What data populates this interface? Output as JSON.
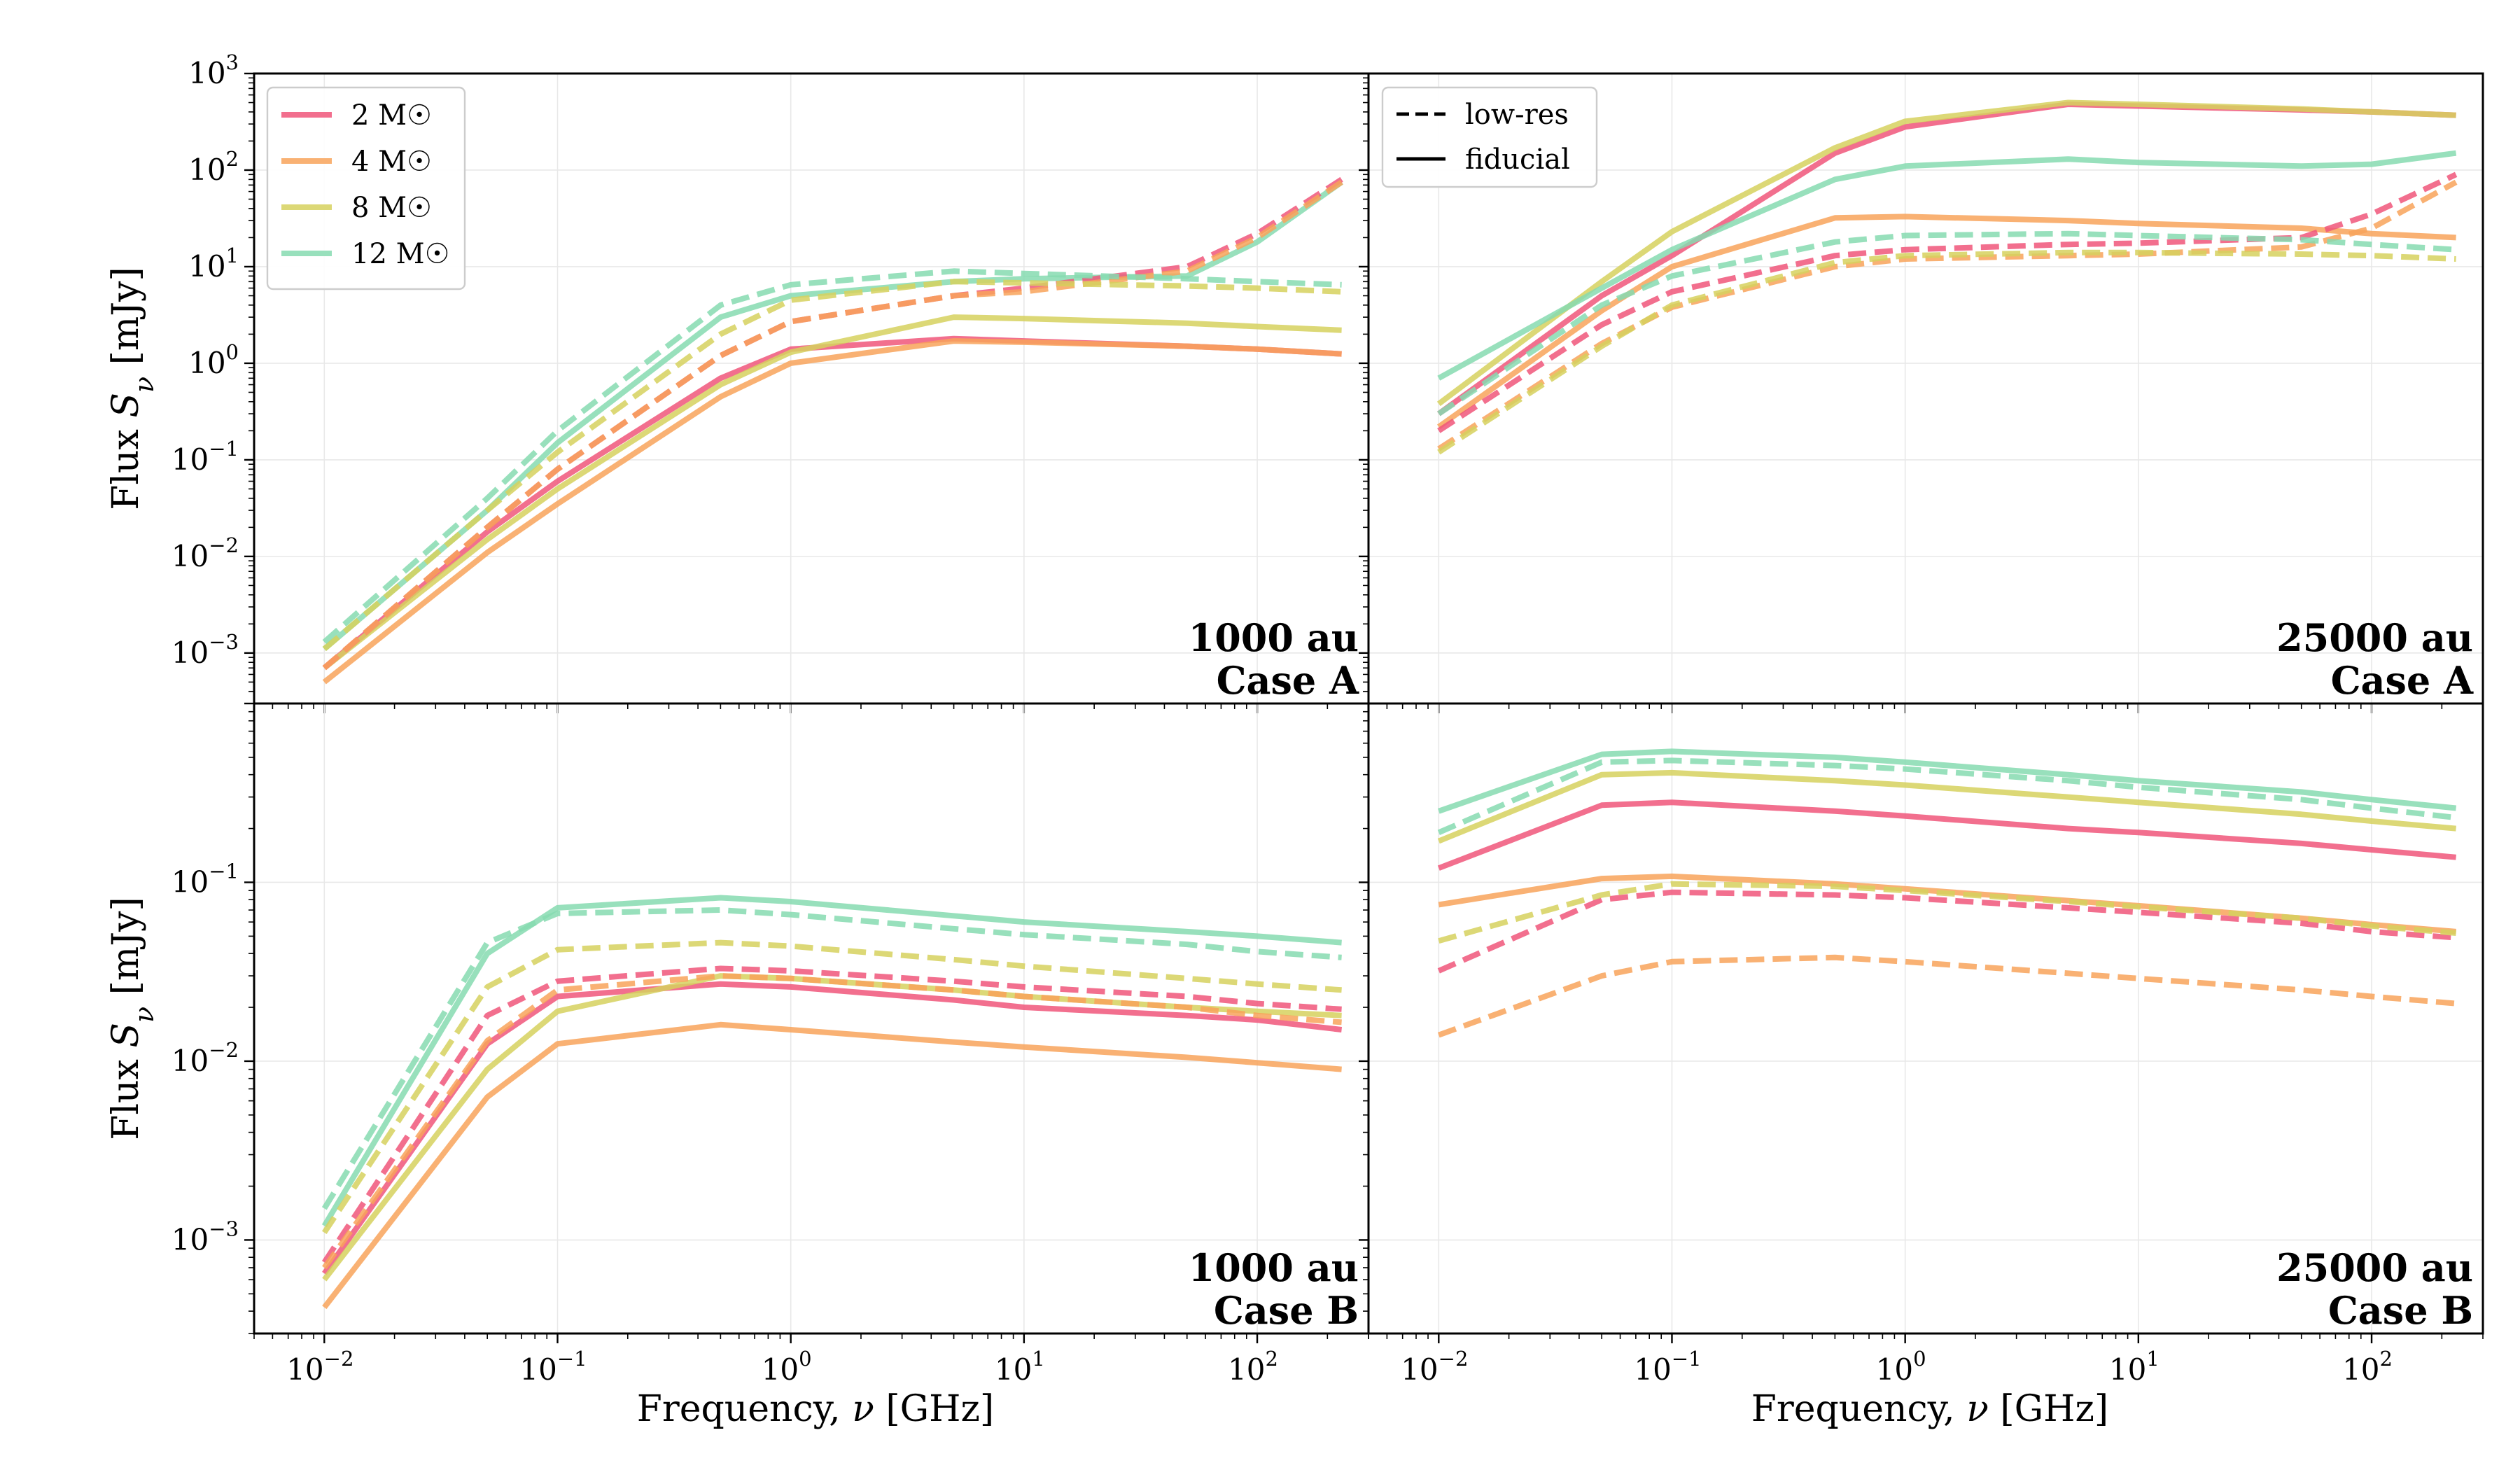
{
  "figure": {
    "xlabel": "Frequency, ν [GHz]",
    "ylabel": "Flux S_ν [mJy]"
  },
  "legend_mass": {
    "entries": [
      {
        "label": "2 M☉",
        "color": "#f0567a"
      },
      {
        "label": "4 M☉",
        "color": "#f8a35a"
      },
      {
        "label": "8 M☉",
        "color": "#d6d15e"
      },
      {
        "label": "12 M☉",
        "color": "#86dbb0"
      }
    ]
  },
  "legend_style": {
    "entries": [
      {
        "label": "low-res",
        "style": "dashed"
      },
      {
        "label": "fiducial",
        "style": "solid"
      }
    ]
  },
  "chart_data": [
    {
      "type": "line",
      "label_line1": "1000 au",
      "label_line2": "Case A",
      "xscale": "log",
      "yscale": "log",
      "xlim": [
        0.005,
        300
      ],
      "ylim": [
        0.0003,
        1000
      ],
      "yticks": [
        -3,
        -2,
        -1,
        0,
        1,
        2,
        3
      ],
      "xticks": [
        -2,
        -1,
        0,
        1,
        2
      ],
      "grid": true,
      "legend": "top-left",
      "x": [
        0.01,
        0.05,
        0.1,
        0.5,
        1,
        5,
        10,
        50,
        100,
        230
      ],
      "series": [
        {
          "mass": "2 M☉",
          "style": "solid",
          "color": "#f0567a",
          "values": [
            0.0007,
            0.018,
            0.06,
            0.7,
            1.4,
            1.8,
            1.7,
            1.5,
            1.4,
            1.25
          ]
        },
        {
          "mass": "4 M☉",
          "style": "solid",
          "color": "#f8a35a",
          "values": [
            0.0005,
            0.011,
            0.035,
            0.45,
            1.0,
            1.7,
            1.65,
            1.5,
            1.4,
            1.25
          ]
        },
        {
          "mass": "8 M☉",
          "style": "solid",
          "color": "#d6d15e",
          "values": [
            0.0007,
            0.015,
            0.05,
            0.6,
            1.3,
            3.0,
            2.9,
            2.6,
            2.4,
            2.2
          ]
        },
        {
          "mass": "12 M☉",
          "style": "solid",
          "color": "#86dbb0",
          "values": [
            0.0011,
            0.03,
            0.15,
            3.0,
            5.0,
            7.0,
            7.5,
            8.0,
            18.0,
            75.0
          ]
        },
        {
          "mass": "2 M☉",
          "style": "dashed",
          "color": "#f0567a",
          "values": [
            0.0007,
            0.02,
            0.08,
            1.2,
            2.7,
            5.0,
            6.0,
            10.0,
            22.0,
            80.0
          ]
        },
        {
          "mass": "4 M☉",
          "style": "dashed",
          "color": "#f8a35a",
          "values": [
            0.0007,
            0.02,
            0.08,
            1.2,
            2.7,
            5.0,
            5.5,
            9.0,
            20.0,
            75.0
          ]
        },
        {
          "mass": "8 M☉",
          "style": "dashed",
          "color": "#d6d15e",
          "values": [
            0.0011,
            0.03,
            0.12,
            2.0,
            4.5,
            7.0,
            6.8,
            6.3,
            6.0,
            5.5
          ]
        },
        {
          "mass": "12 M☉",
          "style": "dashed",
          "color": "#86dbb0",
          "values": [
            0.0013,
            0.04,
            0.2,
            4.0,
            6.5,
            9.0,
            8.5,
            7.5,
            7.0,
            6.5
          ]
        }
      ]
    },
    {
      "type": "line",
      "label_line1": "25000 au",
      "label_line2": "Case A",
      "xscale": "log",
      "yscale": "log",
      "xlim": [
        0.005,
        300
      ],
      "ylim": [
        0.0003,
        1000
      ],
      "yticks": [],
      "xticks": [
        -2,
        -1,
        0,
        1,
        2
      ],
      "grid": true,
      "legend": "top-left",
      "x": [
        0.01,
        0.05,
        0.1,
        0.5,
        1,
        5,
        10,
        50,
        100,
        230
      ],
      "series": [
        {
          "mass": "2 M☉",
          "style": "solid",
          "color": "#f0567a",
          "values": [
            0.3,
            5.0,
            13.0,
            150.0,
            280.0,
            480.0,
            460.0,
            420.0,
            400.0,
            370.0
          ]
        },
        {
          "mass": "4 M☉",
          "style": "solid",
          "color": "#f8a35a",
          "values": [
            0.22,
            3.5,
            10.0,
            32.0,
            33.0,
            30.0,
            28.0,
            25.0,
            22.0,
            20.0
          ]
        },
        {
          "mass": "8 M☉",
          "style": "solid",
          "color": "#d6d15e",
          "values": [
            0.38,
            7.0,
            23.0,
            170.0,
            320.0,
            500.0,
            480.0,
            430.0,
            400.0,
            370.0
          ]
        },
        {
          "mass": "12 M☉",
          "style": "solid",
          "color": "#86dbb0",
          "values": [
            0.7,
            6.0,
            15.0,
            80.0,
            110.0,
            130.0,
            120.0,
            110.0,
            115.0,
            150.0
          ]
        },
        {
          "mass": "2 M☉",
          "style": "dashed",
          "color": "#f0567a",
          "values": [
            0.2,
            2.5,
            5.5,
            13.0,
            15.0,
            17.0,
            17.5,
            20.0,
            35.0,
            90.0
          ]
        },
        {
          "mass": "4 M☉",
          "style": "dashed",
          "color": "#f8a35a",
          "values": [
            0.13,
            1.6,
            3.8,
            10.0,
            12.0,
            13.0,
            13.5,
            16.0,
            25.0,
            75.0
          ]
        },
        {
          "mass": "8 M☉",
          "style": "dashed",
          "color": "#d6d15e",
          "values": [
            0.12,
            1.5,
            4.0,
            11.0,
            13.0,
            14.0,
            14.0,
            13.5,
            13.0,
            12.0
          ]
        },
        {
          "mass": "12 M☉",
          "style": "dashed",
          "color": "#86dbb0",
          "values": [
            0.3,
            4.0,
            8.0,
            18.0,
            21.0,
            22.0,
            21.0,
            19.0,
            17.0,
            15.0
          ]
        }
      ]
    },
    {
      "type": "line",
      "label_line1": "1000 au",
      "label_line2": "Case B",
      "xscale": "log",
      "yscale": "log",
      "xlim": [
        0.005,
        300
      ],
      "ylim": [
        0.0003,
        1.0
      ],
      "yticks": [
        -3,
        -2,
        -1
      ],
      "xticks": [
        -2,
        -1,
        0,
        1,
        2
      ],
      "grid": true,
      "x": [
        0.01,
        0.05,
        0.1,
        0.5,
        1,
        5,
        10,
        50,
        100,
        230
      ],
      "series": [
        {
          "mass": "2 M☉",
          "style": "solid",
          "color": "#f0567a",
          "values": [
            0.00065,
            0.0125,
            0.023,
            0.027,
            0.026,
            0.022,
            0.02,
            0.018,
            0.017,
            0.015
          ]
        },
        {
          "mass": "4 M☉",
          "style": "solid",
          "color": "#f8a35a",
          "values": [
            0.00042,
            0.0063,
            0.0125,
            0.016,
            0.015,
            0.0128,
            0.012,
            0.0105,
            0.0098,
            0.009
          ]
        },
        {
          "mass": "8 M☉",
          "style": "solid",
          "color": "#d6d15e",
          "values": [
            0.0006,
            0.009,
            0.019,
            0.03,
            0.029,
            0.025,
            0.023,
            0.02,
            0.019,
            0.018
          ]
        },
        {
          "mass": "12 M☉",
          "style": "solid",
          "color": "#86dbb0",
          "values": [
            0.0012,
            0.04,
            0.072,
            0.082,
            0.078,
            0.065,
            0.06,
            0.053,
            0.05,
            0.046
          ]
        },
        {
          "mass": "2 M☉",
          "style": "dashed",
          "color": "#f0567a",
          "values": [
            0.00075,
            0.018,
            0.028,
            0.033,
            0.032,
            0.028,
            0.026,
            0.023,
            0.021,
            0.0195
          ]
        },
        {
          "mass": "4 M☉",
          "style": "dashed",
          "color": "#f8a35a",
          "values": [
            0.0007,
            0.013,
            0.025,
            0.03,
            0.029,
            0.025,
            0.023,
            0.02,
            0.018,
            0.0165
          ]
        },
        {
          "mass": "8 M☉",
          "style": "dashed",
          "color": "#d6d15e",
          "values": [
            0.0011,
            0.026,
            0.042,
            0.046,
            0.044,
            0.037,
            0.034,
            0.029,
            0.027,
            0.025
          ]
        },
        {
          "mass": "12 M☉",
          "style": "dashed",
          "color": "#86dbb0",
          "values": [
            0.0015,
            0.046,
            0.067,
            0.07,
            0.066,
            0.055,
            0.051,
            0.045,
            0.041,
            0.038
          ]
        }
      ]
    },
    {
      "type": "line",
      "label_line1": "25000 au",
      "label_line2": "Case B",
      "xscale": "log",
      "yscale": "log",
      "xlim": [
        0.005,
        300
      ],
      "ylim": [
        0.0003,
        1.0
      ],
      "yticks": [],
      "xticks": [
        -2,
        -1,
        0,
        1,
        2
      ],
      "grid": true,
      "x": [
        0.01,
        0.05,
        0.1,
        0.5,
        1,
        5,
        10,
        50,
        100,
        230
      ],
      "series": [
        {
          "mass": "2 M☉",
          "style": "solid",
          "color": "#f0567a",
          "values": [
            0.12,
            0.27,
            0.28,
            0.25,
            0.235,
            0.2,
            0.19,
            0.165,
            0.152,
            0.138
          ]
        },
        {
          "mass": "4 M☉",
          "style": "solid",
          "color": "#f8a35a",
          "values": [
            0.075,
            0.105,
            0.108,
            0.098,
            0.092,
            0.079,
            0.074,
            0.063,
            0.058,
            0.053
          ]
        },
        {
          "mass": "8 M☉",
          "style": "solid",
          "color": "#d6d15e",
          "values": [
            0.17,
            0.4,
            0.41,
            0.37,
            0.35,
            0.3,
            0.28,
            0.24,
            0.22,
            0.2
          ]
        },
        {
          "mass": "12 M☉",
          "style": "solid",
          "color": "#86dbb0",
          "values": [
            0.25,
            0.52,
            0.54,
            0.5,
            0.47,
            0.4,
            0.37,
            0.32,
            0.29,
            0.26
          ]
        },
        {
          "mass": "2 M☉",
          "style": "dashed",
          "color": "#f0567a",
          "values": [
            0.032,
            0.08,
            0.088,
            0.085,
            0.082,
            0.072,
            0.068,
            0.059,
            0.053,
            0.049
          ]
        },
        {
          "mass": "4 M☉",
          "style": "dashed",
          "color": "#f8a35a",
          "values": [
            0.014,
            0.03,
            0.036,
            0.038,
            0.036,
            0.031,
            0.029,
            0.025,
            0.023,
            0.021
          ]
        },
        {
          "mass": "8 M☉",
          "style": "dashed",
          "color": "#d6d15e",
          "values": [
            0.047,
            0.085,
            0.098,
            0.095,
            0.09,
            0.078,
            0.073,
            0.063,
            0.057,
            0.052
          ]
        },
        {
          "mass": "12 M☉",
          "style": "dashed",
          "color": "#86dbb0",
          "values": [
            0.19,
            0.47,
            0.48,
            0.45,
            0.43,
            0.37,
            0.34,
            0.29,
            0.26,
            0.23
          ]
        }
      ]
    }
  ]
}
